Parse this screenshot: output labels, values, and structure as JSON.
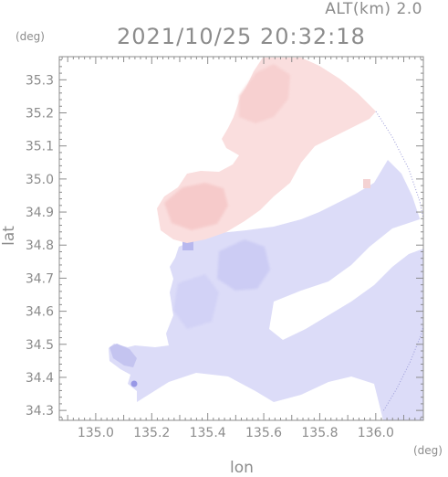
{
  "header": {
    "altitude_label": "ALT(km) 2.0",
    "timestamp": "2021/10/25 20:32:18"
  },
  "axes": {
    "y_unit": "(deg)",
    "x_unit": "(deg)",
    "xlabel": "lon",
    "ylabel": "lat",
    "x_range": [
      134.87,
      136.17
    ],
    "y_range": [
      34.27,
      35.37
    ],
    "x_ticks": [
      "135.0",
      "135.2",
      "135.4",
      "135.6",
      "135.8",
      "136.0"
    ],
    "y_ticks": [
      "35.3",
      "35.2",
      "35.1",
      "35.0",
      "34.9",
      "34.8",
      "34.7",
      "34.6",
      "34.5",
      "34.4",
      "34.3"
    ]
  },
  "colors": {
    "frame": "#8c8c8c",
    "approaching": "#dcdcfa",
    "receding": "#fadcdc",
    "approaching_strong": "#c8c8f5",
    "receding_strong": "#f5c8c8",
    "text": "#8c8c8c"
  }
}
